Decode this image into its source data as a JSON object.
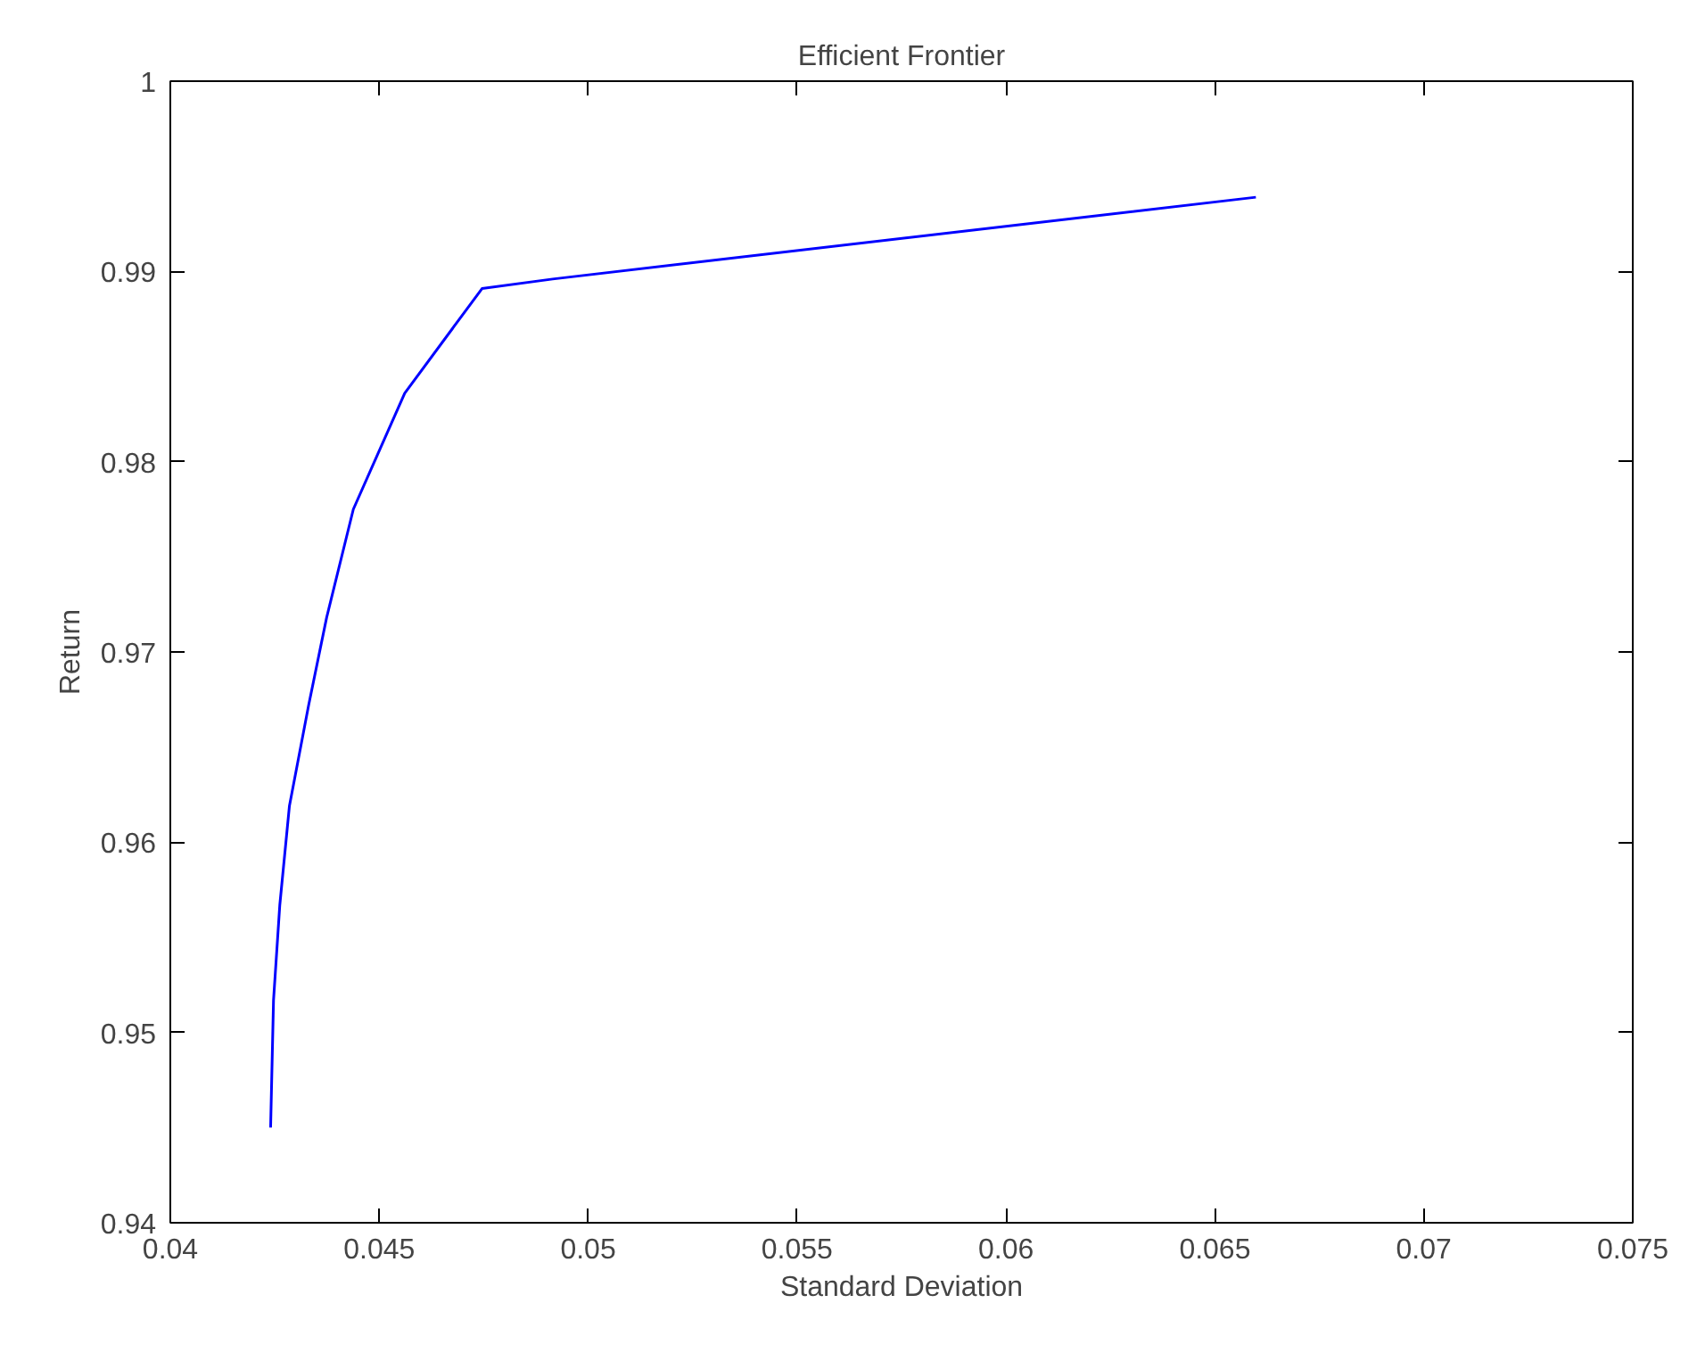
{
  "chart_data": {
    "type": "line",
    "title": "Efficient Frontier",
    "xlabel": "Standard Deviation",
    "ylabel": "Return",
    "series": [
      {
        "color": "#0000ff",
        "x": [
          0.0424,
          0.04247,
          0.04262,
          0.04285,
          0.04331,
          0.04374,
          0.04438,
          0.04561,
          0.04746,
          0.04915,
          0.06598
        ],
        "values": [
          0.945,
          0.9517,
          0.9567,
          0.9619,
          0.9672,
          0.9718,
          0.9775,
          0.9836,
          0.9891,
          0.9896,
          0.9939
        ]
      }
    ],
    "xlim": [
      0.04,
      0.075
    ],
    "xticks": [
      0.04,
      0.045,
      0.05,
      0.055,
      0.06,
      0.065,
      0.07,
      0.075
    ],
    "ylim": [
      0.94,
      1
    ],
    "yticks": [
      0.94,
      0.95,
      0.96,
      0.97,
      0.98,
      0.99,
      1
    ],
    "grid": false,
    "marker": "none",
    "line_style": "solid"
  }
}
